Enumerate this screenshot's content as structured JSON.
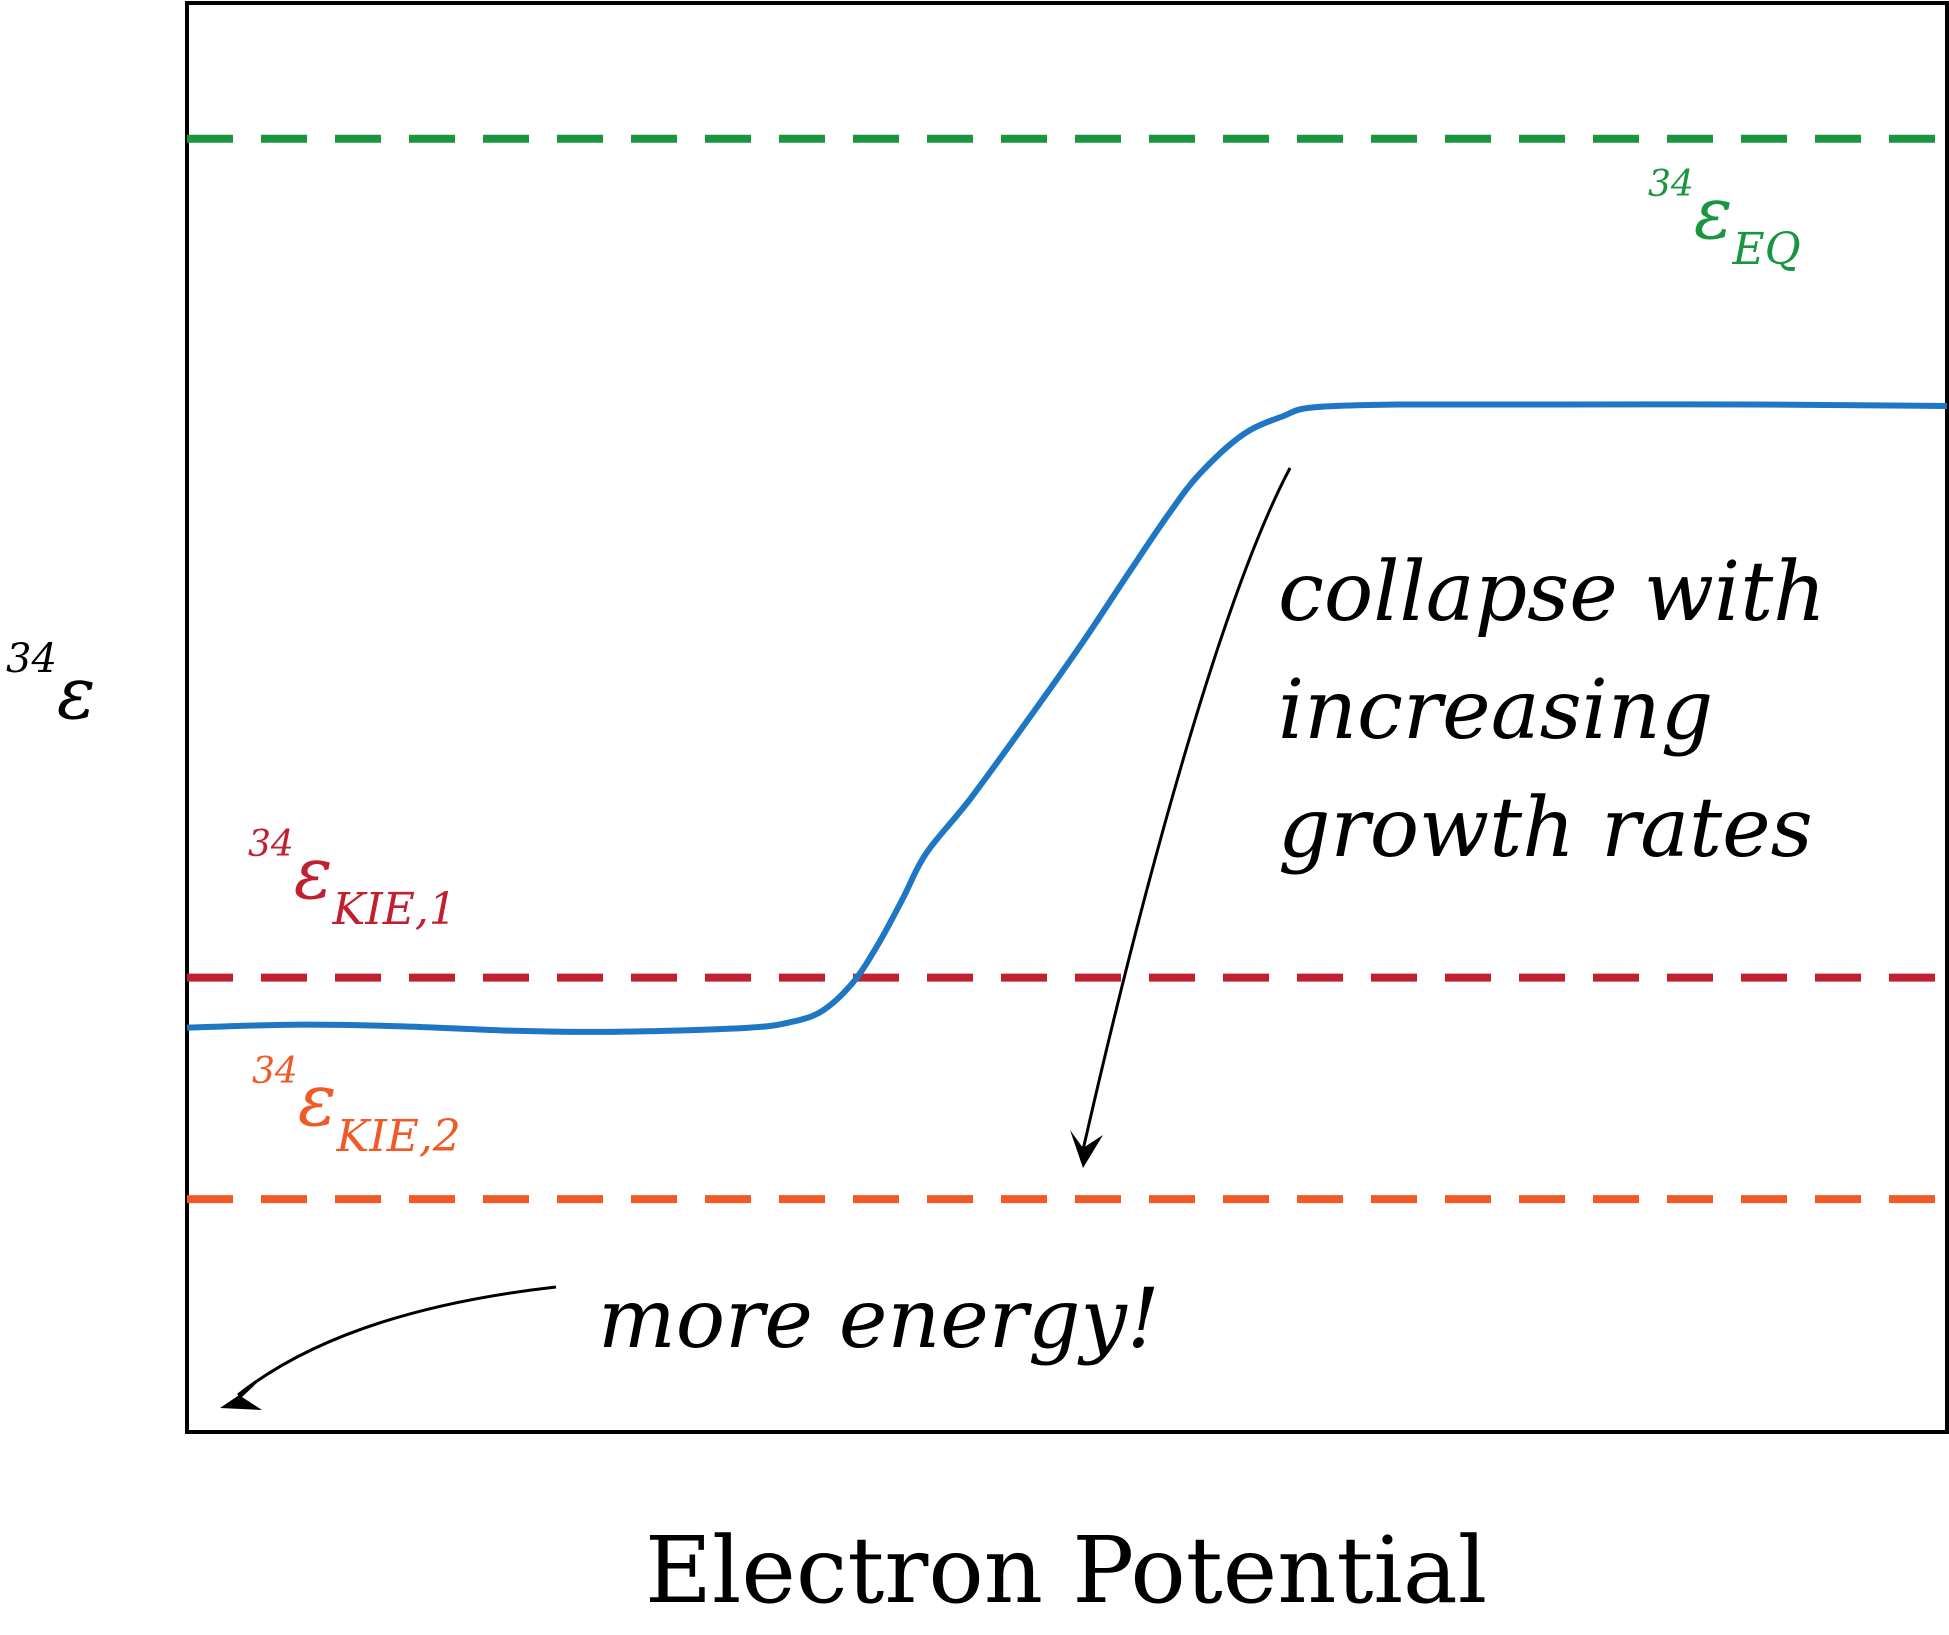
{
  "chart_data": {
    "type": "line",
    "xlabel": "Electron Potential",
    "ylabel": {
      "sup": "34",
      "sym": "ε"
    },
    "xlim": [
      0,
      100
    ],
    "ylim": [
      0,
      100
    ],
    "grid": false,
    "series": [
      {
        "name": "",
        "color": "#1f77c4",
        "points": [
          [
            0,
            28.3
          ],
          [
            6,
            28.5
          ],
          [
            12,
            28.4
          ],
          [
            18,
            28.1
          ],
          [
            23,
            28.0
          ],
          [
            28,
            28.1
          ],
          [
            32,
            28.3
          ],
          [
            34,
            28.6
          ],
          [
            36,
            29.4
          ],
          [
            37.8,
            31.4
          ],
          [
            39.3,
            34.2
          ],
          [
            40.7,
            37.4
          ],
          [
            42,
            40.5
          ],
          [
            44.5,
            44.3
          ],
          [
            47.7,
            49.7
          ],
          [
            50.8,
            55.1
          ],
          [
            53.5,
            60.1
          ],
          [
            55.7,
            64.1
          ],
          [
            57.5,
            67.0
          ],
          [
            60,
            69.8
          ],
          [
            62.3,
            71.1
          ],
          [
            64,
            71.7
          ],
          [
            69,
            71.9
          ],
          [
            78,
            71.9
          ],
          [
            89,
            71.9
          ],
          [
            100,
            71.8
          ]
        ]
      }
    ],
    "reference_lines": [
      {
        "id": "eq",
        "sup": "34",
        "sym": "ε",
        "sub": "EQ",
        "y": 90.5,
        "color": "#1a9641",
        "style": "dashed"
      },
      {
        "id": "kie1",
        "sup": "34",
        "sym": "ε",
        "sub": "KIE,1",
        "y": 31.8,
        "color": "#c0202f",
        "style": "dashed"
      },
      {
        "id": "kie2",
        "sup": "34",
        "sym": "ε",
        "sub": "KIE,2",
        "y": 16.3,
        "color": "#ef5a26",
        "style": "dashed"
      }
    ],
    "annotations": [
      {
        "id": "collapse",
        "lines": [
          "collapse with",
          "increasing",
          "growth rates"
        ]
      },
      {
        "id": "energy",
        "text": "more energy!"
      }
    ]
  }
}
